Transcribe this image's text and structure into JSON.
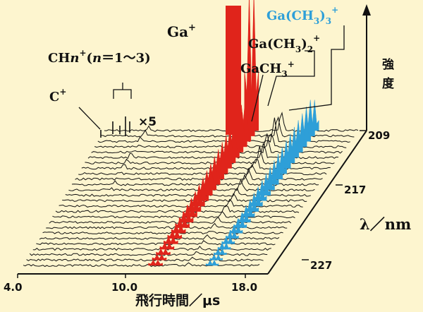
{
  "chart_data": {
    "type": "line",
    "title": "",
    "xlabel": "飛行時間／μs",
    "ylabel": "強度",
    "zlabel": "λ／nm",
    "x_ticks": [
      "4.0",
      "10.0",
      "18.0"
    ],
    "z_ticks": [
      "209",
      "217",
      "227"
    ],
    "annotations": {
      "c": "C",
      "c_sup": "+",
      "ch": "CH",
      "ch_n": "n",
      "ch_sup": "+",
      "ch_paren": "(",
      "ch_n2": "n",
      "ch_rest": "＝1〜3)",
      "ga": "Ga",
      "ga_sup": "+",
      "gach3": "GaCH",
      "gach3_sub": "3",
      "gach3_sup": "+",
      "gach32": "Ga(CH",
      "gach32_sub1": "3",
      "gach32_paren": ")",
      "gach32_sub2": "2",
      "gach32_sup": "+",
      "gach33": "Ga(CH",
      "gach33_sub1": "3",
      "gach33_paren": ")",
      "gach33_sub2": "3",
      "gach33_sup": "+",
      "times5": "×5"
    },
    "colors": {
      "background": "#fdf5cf",
      "trace": "#111111",
      "ga_peak": "#e0241b",
      "gach33_peak": "#2e9fd8"
    },
    "trace_count": 26
  }
}
